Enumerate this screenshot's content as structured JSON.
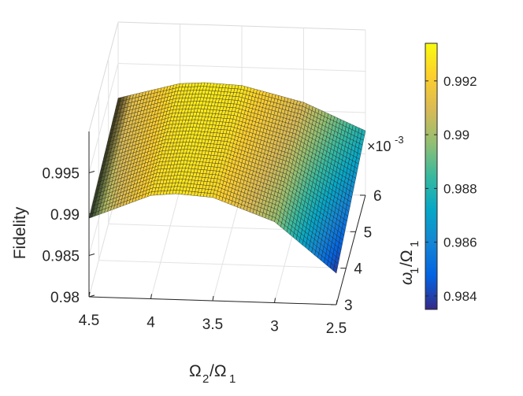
{
  "chart_data": {
    "type": "surface",
    "xlabel": "Ω2/Ω1",
    "ylabel": "ω1/Ω1",
    "zlabel": "Fidelity",
    "x_ticks": [
      "4.5",
      "4",
      "3.5",
      "3",
      "2.5"
    ],
    "x_tick_values": [
      4.5,
      4,
      3.5,
      3,
      2.5
    ],
    "y_ticks": [
      "3",
      "4",
      "5",
      "6"
    ],
    "y_tick_values": [
      3,
      4,
      5,
      6
    ],
    "y_exponent": "×10-3",
    "z_ticks": [
      "0.98",
      "0.985",
      "0.99",
      "0.995"
    ],
    "z_tick_values": [
      0.98,
      0.985,
      0.99,
      0.995
    ],
    "xlim": [
      2.5,
      4.5
    ],
    "ylim": [
      3,
      6
    ],
    "zlim": [
      0.98,
      1.0
    ],
    "grid": true,
    "colormap": "parula",
    "colorbar": {
      "ticks": [
        "0.984",
        "0.986",
        "0.988",
        "0.99",
        "0.992"
      ],
      "tick_values": [
        0.984,
        0.986,
        0.988,
        0.99,
        0.992
      ],
      "range": [
        0.9835,
        0.9934
      ],
      "colors": [
        "#352a87",
        "#0363e1",
        "#1485d4",
        "#06a7c6",
        "#38b99e",
        "#92bf73",
        "#d9ba56",
        "#fcce2e",
        "#f9fb0e"
      ]
    },
    "surface_samples": {
      "x": [
        2.5,
        3.0,
        3.5,
        3.8,
        4.0,
        4.5
      ],
      "at_y_3e-3": [
        0.9838,
        0.9898,
        0.9925,
        0.9928,
        0.9925,
        0.9895
      ],
      "at_y_6e-3": [
        0.9878,
        0.991,
        0.9928,
        0.993,
        0.9928,
        0.9908
      ]
    }
  }
}
